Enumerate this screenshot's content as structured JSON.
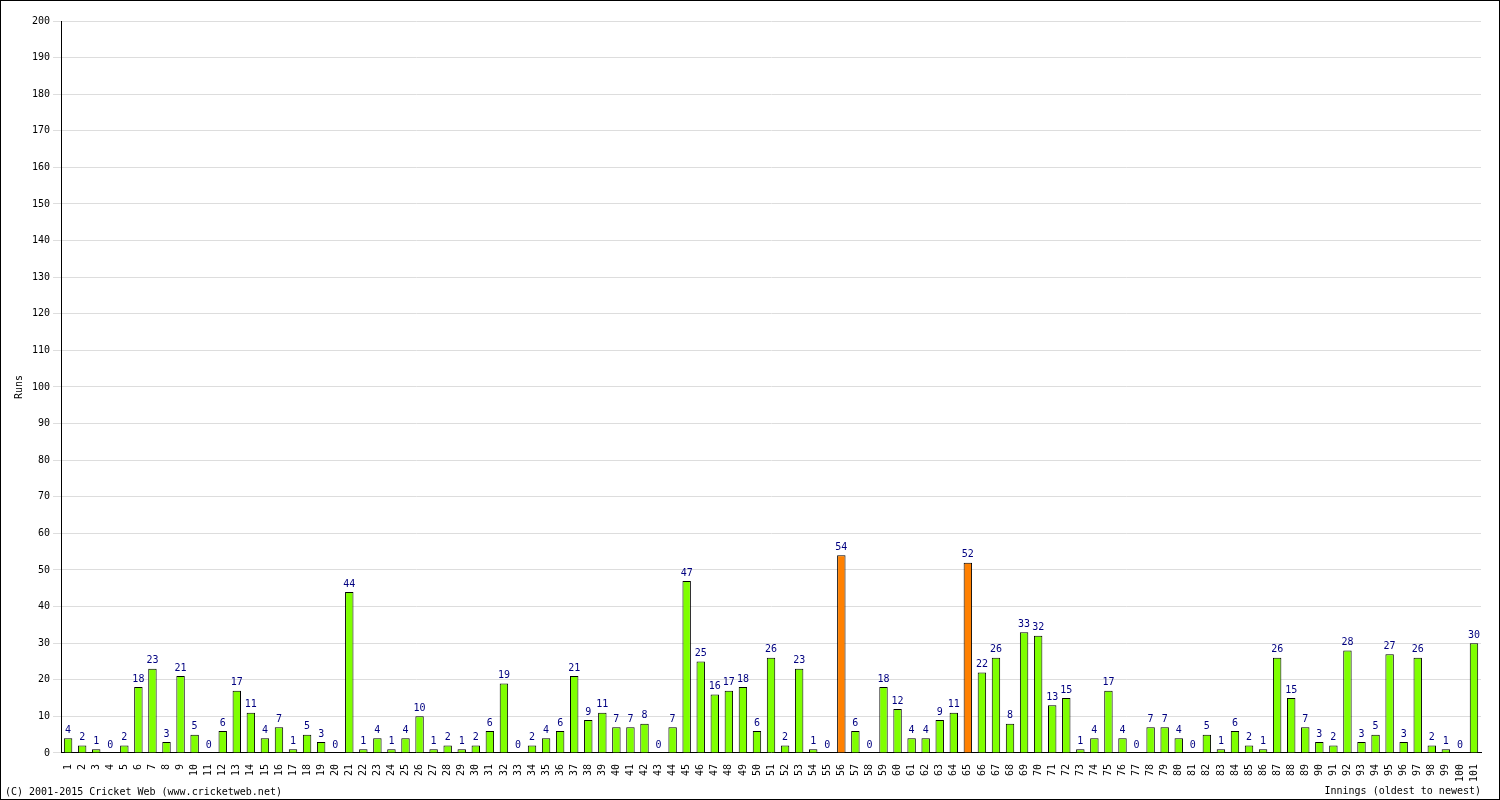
{
  "chart_data": {
    "type": "bar",
    "x_label": "Innings (oldest to newest)",
    "y_label": "Runs",
    "annotations": [
      "(C) 2001-2015 Cricket Web (www.cricketweb.net)"
    ],
    "categories": [
      "1",
      "2",
      "3",
      "4",
      "5",
      "6",
      "7",
      "8",
      "9",
      "10",
      "11",
      "12",
      "13",
      "14",
      "15",
      "16",
      "17",
      "18",
      "19",
      "20",
      "21",
      "22",
      "23",
      "24",
      "25",
      "26",
      "27",
      "28",
      "29",
      "30",
      "31",
      "32",
      "33",
      "34",
      "35",
      "36",
      "37",
      "38",
      "39",
      "40",
      "41",
      "42",
      "43",
      "44",
      "45",
      "46",
      "47",
      "48",
      "49",
      "50",
      "51",
      "52",
      "53",
      "54",
      "55",
      "56",
      "57",
      "58",
      "59",
      "60",
      "61",
      "62",
      "63",
      "64",
      "65",
      "66",
      "67",
      "68",
      "69",
      "70",
      "71",
      "72",
      "73",
      "74",
      "75",
      "76",
      "77",
      "78",
      "79",
      "80",
      "81",
      "82",
      "83",
      "84",
      "85",
      "86",
      "87",
      "88",
      "89",
      "90",
      "91",
      "92",
      "93",
      "94",
      "95",
      "96",
      "97",
      "98",
      "99",
      "100",
      "101"
    ],
    "values": [
      4,
      2,
      1,
      0,
      2,
      18,
      23,
      3,
      21,
      5,
      0,
      6,
      17,
      11,
      4,
      7,
      1,
      5,
      3,
      0,
      44,
      1,
      4,
      1,
      4,
      10,
      1,
      2,
      1,
      2,
      6,
      19,
      0,
      2,
      4,
      6,
      21,
      9,
      11,
      7,
      7,
      8,
      0,
      7,
      47,
      25,
      16,
      17,
      18,
      6,
      26,
      2,
      23,
      1,
      0,
      54,
      6,
      0,
      18,
      12,
      4,
      4,
      9,
      11,
      52,
      22,
      26,
      8,
      33,
      32,
      13,
      15,
      1,
      4,
      17,
      4,
      0,
      7,
      7,
      4,
      0,
      5,
      1,
      6,
      2,
      1,
      26,
      15,
      7,
      3,
      2,
      28,
      3,
      5,
      27,
      3,
      26,
      2,
      1,
      0,
      30
    ],
    "colors": [
      "#7fff00",
      "#7fff00",
      "#7fff00",
      "#7fff00",
      "#7fff00",
      "#7fff00",
      "#7fff00",
      "#7fff00",
      "#7fff00",
      "#7fff00",
      "#7fff00",
      "#7fff00",
      "#7fff00",
      "#7fff00",
      "#7fff00",
      "#7fff00",
      "#7fff00",
      "#7fff00",
      "#7fff00",
      "#7fff00",
      "#7fff00",
      "#7fff00",
      "#7fff00",
      "#7fff00",
      "#7fff00",
      "#7fff00",
      "#7fff00",
      "#7fff00",
      "#7fff00",
      "#7fff00",
      "#7fff00",
      "#7fff00",
      "#7fff00",
      "#7fff00",
      "#7fff00",
      "#7fff00",
      "#7fff00",
      "#7fff00",
      "#7fff00",
      "#7fff00",
      "#7fff00",
      "#7fff00",
      "#7fff00",
      "#7fff00",
      "#7fff00",
      "#7fff00",
      "#7fff00",
      "#7fff00",
      "#7fff00",
      "#7fff00",
      "#7fff00",
      "#7fff00",
      "#7fff00",
      "#7fff00",
      "#7fff00",
      "#ff8000",
      "#7fff00",
      "#7fff00",
      "#7fff00",
      "#7fff00",
      "#7fff00",
      "#7fff00",
      "#7fff00",
      "#7fff00",
      "#ff8000",
      "#7fff00",
      "#7fff00",
      "#7fff00",
      "#7fff00",
      "#7fff00",
      "#7fff00",
      "#7fff00",
      "#7fff00",
      "#7fff00",
      "#7fff00",
      "#7fff00",
      "#7fff00",
      "#7fff00",
      "#7fff00",
      "#7fff00",
      "#7fff00",
      "#7fff00",
      "#7fff00",
      "#7fff00",
      "#7fff00",
      "#7fff00",
      "#7fff00",
      "#7fff00",
      "#7fff00",
      "#7fff00",
      "#7fff00",
      "#7fff00",
      "#7fff00",
      "#7fff00",
      "#7fff00",
      "#7fff00",
      "#7fff00",
      "#7fff00",
      "#7fff00",
      "#7fff00",
      "#7fff00"
    ],
    "ylim": [
      0,
      200
    ],
    "yticks": [
      0,
      10,
      20,
      30,
      40,
      50,
      60,
      70,
      80,
      90,
      100,
      110,
      120,
      130,
      140,
      150,
      160,
      170,
      180,
      190,
      200
    ],
    "grid": true,
    "data_labels": true
  }
}
